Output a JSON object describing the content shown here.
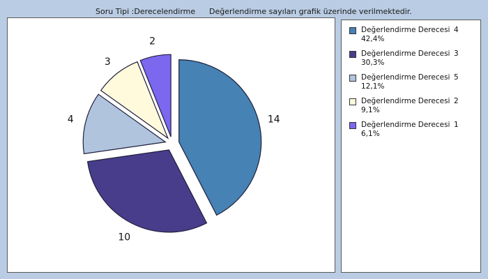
{
  "header": {
    "left": "Soru Tipi :Derecelendirme",
    "right": "Değerlendirme sayıları grafik üzerinde verilmektedir."
  },
  "chart_data": {
    "type": "pie",
    "slices": [
      {
        "label": "Değerlendirme Derecesi",
        "degree": "4",
        "value": 14,
        "percent": "42,4%",
        "color": "#4682b4"
      },
      {
        "label": "Değerlendirme Derecesi",
        "degree": "3",
        "value": 10,
        "percent": "30,3%",
        "color": "#483d8b"
      },
      {
        "label": "Değerlendirme Derecesi",
        "degree": "5",
        "value": 4,
        "percent": "12,1%",
        "color": "#b0c4de"
      },
      {
        "label": "Değerlendirme Derecesi",
        "degree": "2",
        "value": 3,
        "percent": "9,1%",
        "color": "#fffadc"
      },
      {
        "label": "Değerlendirme Derecesi",
        "degree": "1",
        "value": 2,
        "percent": "6,1%",
        "color": "#7b68ee"
      }
    ],
    "start_angle_deg": 0,
    "direction": "clockwise",
    "exploded": true,
    "legend_position": "right"
  }
}
